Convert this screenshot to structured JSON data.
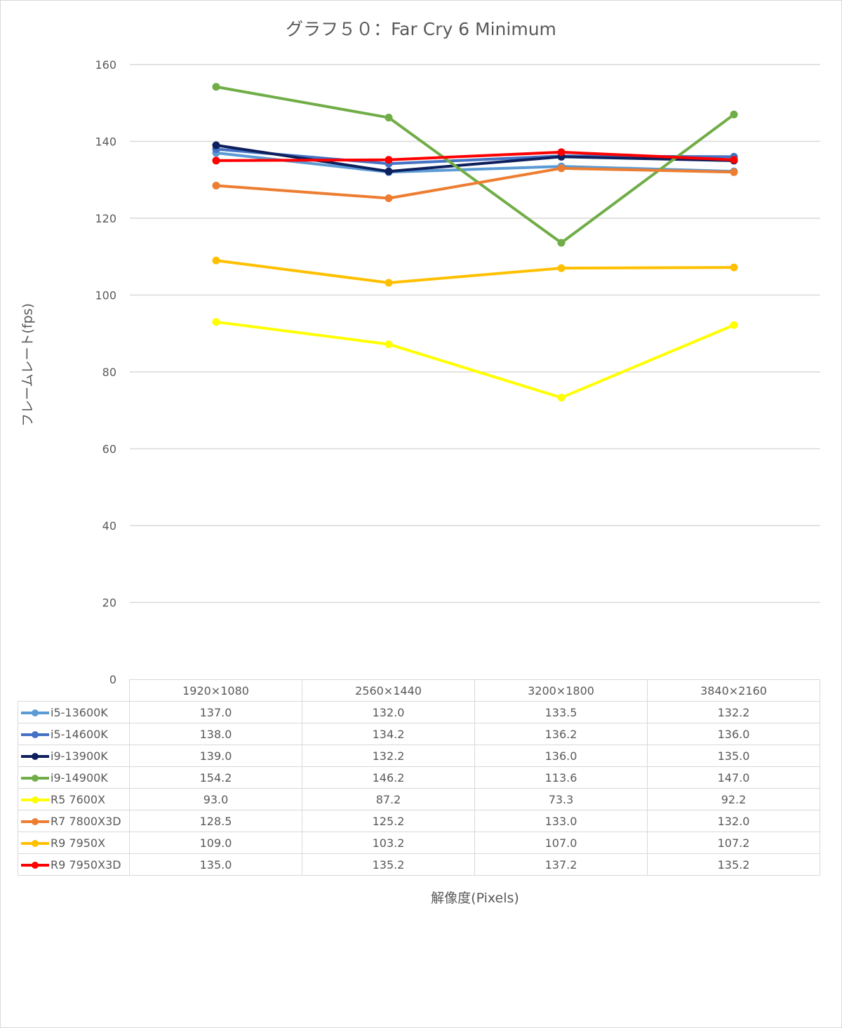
{
  "chart_data": {
    "type": "line",
    "title": "グラフ５０：Far Cry 6 Minimum",
    "xlabel": "解像度(Pixels)",
    "ylabel": "フレームレート(fps)",
    "ylim": [
      0,
      160
    ],
    "yticks": [
      0,
      20,
      40,
      60,
      80,
      100,
      120,
      140,
      160
    ],
    "grid": true,
    "legend_position": "data-table",
    "categories": [
      "1920×1080",
      "2560×1440",
      "3200×1800",
      "3840×2160"
    ],
    "series": [
      {
        "name": "i5-13600K",
        "color": "#5b9bd5",
        "values": [
          137.0,
          132.0,
          133.5,
          132.2
        ],
        "labels": [
          "137.0",
          "132.0",
          "133.5",
          "132.2"
        ]
      },
      {
        "name": "i5-14600K",
        "color": "#4472c4",
        "values": [
          138.0,
          134.2,
          136.2,
          136.0
        ],
        "labels": [
          "138.0",
          "134.2",
          "136.2",
          "136.0"
        ]
      },
      {
        "name": "i9-13900K",
        "color": "#0d1f5c",
        "values": [
          139.0,
          132.2,
          136.0,
          135.0
        ],
        "labels": [
          "139.0",
          "132.2",
          "136.0",
          "135.0"
        ]
      },
      {
        "name": "i9-14900K",
        "color": "#70ad47",
        "values": [
          154.2,
          146.2,
          113.6,
          147.0
        ],
        "labels": [
          "154.2",
          "146.2",
          "113.6",
          "147.0"
        ]
      },
      {
        "name": "R5 7600X",
        "color": "#ffff00",
        "values": [
          93.0,
          87.2,
          73.3,
          92.2
        ],
        "labels": [
          "93.0",
          "87.2",
          "73.3",
          "92.2"
        ]
      },
      {
        "name": "R7 7800X3D",
        "color": "#ed7d31",
        "values": [
          128.5,
          125.2,
          133.0,
          132.0
        ],
        "labels": [
          "128.5",
          "125.2",
          "133.0",
          "132.0"
        ]
      },
      {
        "name": "R9 7950X",
        "color": "#ffc000",
        "values": [
          109.0,
          103.2,
          107.0,
          107.2
        ],
        "labels": [
          "109.0",
          "103.2",
          "107.0",
          "107.2"
        ]
      },
      {
        "name": "R9 7950X3D",
        "color": "#ff0000",
        "values": [
          135.0,
          135.2,
          137.2,
          135.2
        ],
        "labels": [
          "135.0",
          "135.2",
          "137.2",
          "135.2"
        ]
      }
    ]
  }
}
